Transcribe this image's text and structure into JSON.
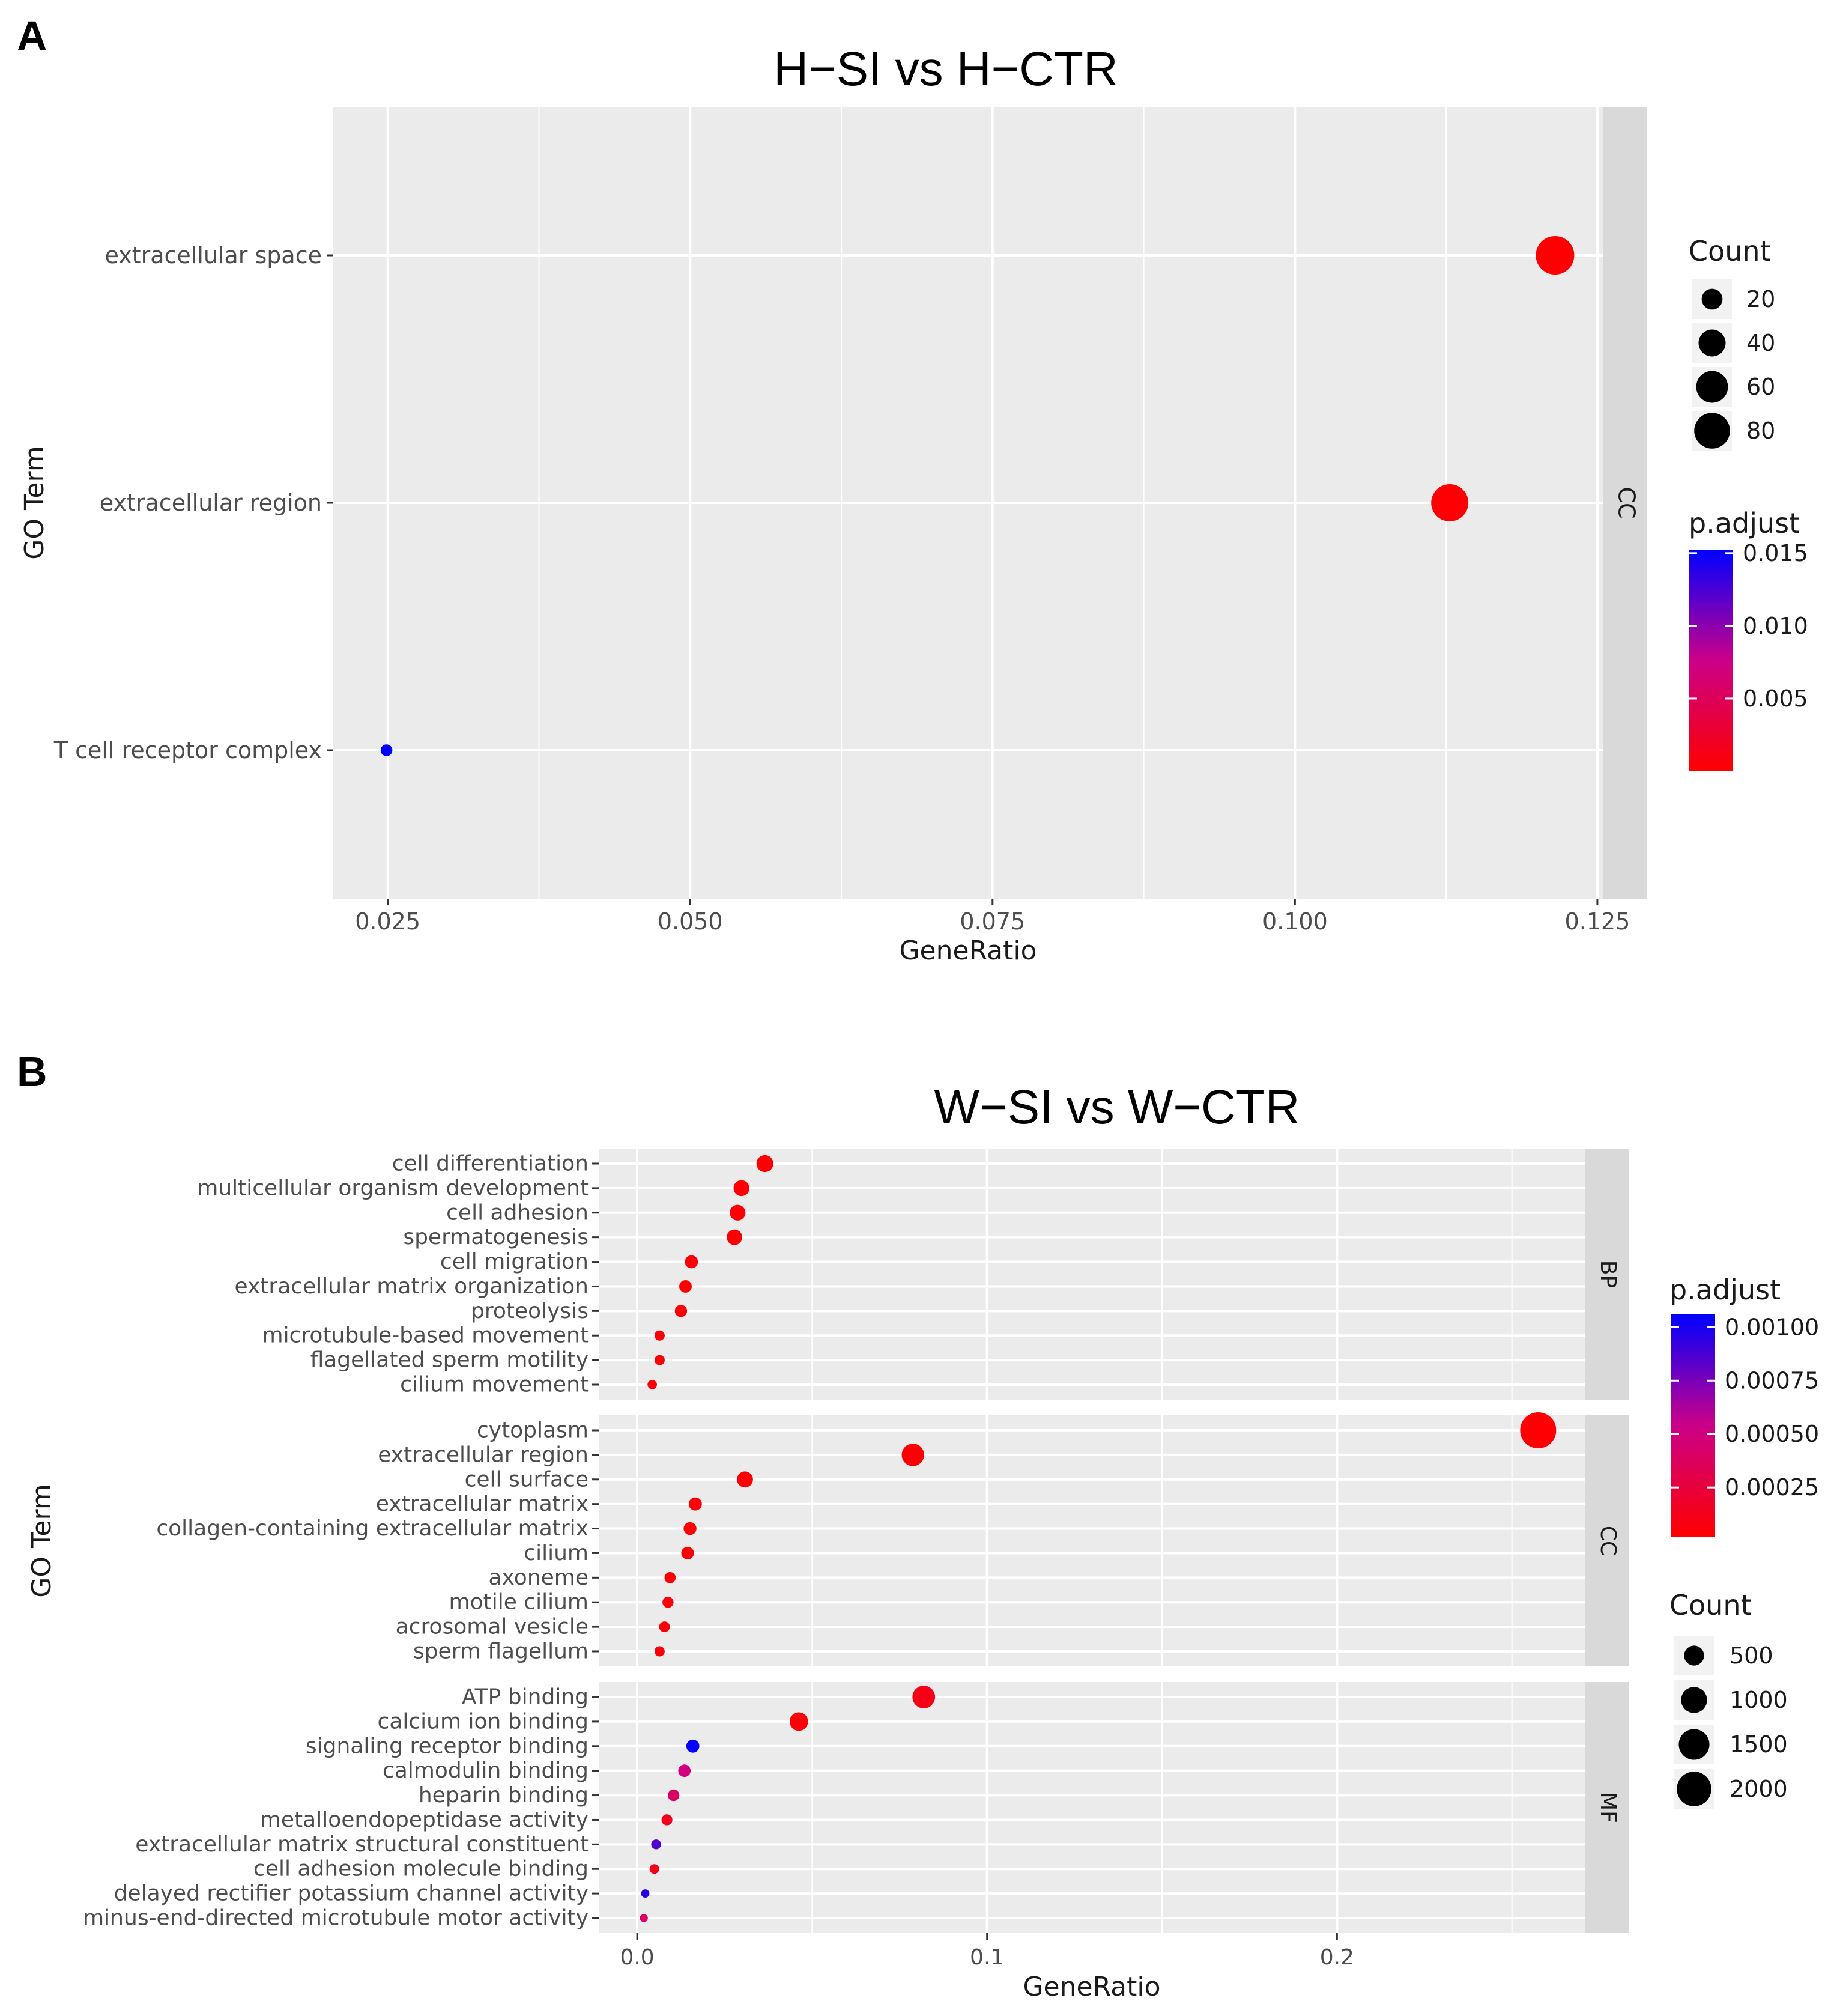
{
  "panels": [
    {
      "label": "A",
      "title": "H−SI vs H−CTR",
      "xlabel": "GeneRatio",
      "ylabel": "GO Term",
      "legend_count_title": "Count",
      "legend_color_title": "p.adjust"
    },
    {
      "label": "B",
      "title": "W−SI vs W−CTR",
      "xlabel": "GeneRatio",
      "ylabel": "GO Term",
      "legend_count_title": "Count",
      "legend_color_title": "p.adjust"
    }
  ],
  "colors": {
    "panel_bg": "#ebebeb",
    "strip_bg": "#d9d9d9",
    "grid": "#ffffff",
    "low": "#ff0000",
    "high": "#0000ff"
  },
  "chart_data": [
    {
      "type": "scatter",
      "title": "H−SI vs H−CTR",
      "xlabel": "GeneRatio",
      "ylabel": "GO Term",
      "xlim": [
        0.0205,
        0.1255
      ],
      "x_ticks": [
        0.025,
        0.05,
        0.075,
        0.1,
        0.125
      ],
      "x_tick_labels": [
        "0.025",
        "0.050",
        "0.075",
        "0.100",
        "0.125"
      ],
      "size_legend": {
        "title": "Count",
        "values": [
          20,
          40,
          60,
          80
        ],
        "labels": [
          "20",
          "40",
          "60",
          "80"
        ]
      },
      "color_legend": {
        "title": "p.adjust",
        "min": 0,
        "max": 0.0152,
        "ticks": [
          0.015,
          0.01,
          0.005
        ],
        "tick_labels": [
          "0.015",
          "0.010",
          "0.005"
        ]
      },
      "facets": [
        {
          "name": "CC",
          "terms": [
            "extracellular space",
            "extracellular region",
            "T cell receptor complex"
          ],
          "gene_ratio": [
            0.1215,
            0.1128,
            0.0249
          ],
          "count": [
            95,
            88,
            3
          ],
          "p_adjust": [
            0.0001,
            0.0002,
            0.0152
          ]
        }
      ]
    },
    {
      "type": "scatter",
      "title": "W−SI vs W−CTR",
      "xlabel": "GeneRatio",
      "ylabel": "GO Term",
      "xlim": [
        -0.011,
        0.271
      ],
      "x_ticks": [
        0.0,
        0.1,
        0.2
      ],
      "x_tick_labels": [
        "0.0",
        "0.1",
        "0.2"
      ],
      "size_legend": {
        "title": "Count",
        "values": [
          500,
          1000,
          1500,
          2000
        ],
        "labels": [
          "500",
          "1000",
          "1500",
          "2000"
        ]
      },
      "color_legend": {
        "title": "p.adjust",
        "min": 2e-05,
        "max": 0.00106,
        "ticks": [
          0.001,
          0.00075,
          0.0005,
          0.00025
        ],
        "tick_labels": [
          "0.00100",
          "0.00075",
          "0.00050",
          "0.00025"
        ]
      },
      "facets": [
        {
          "name": "BP",
          "terms": [
            "cell differentiation",
            "multicellular organism development",
            "cell adhesion",
            "spermatogenesis",
            "cell migration",
            "extracellular matrix organization",
            "proteolysis",
            "microtubule-based movement",
            "flagellated sperm motility",
            "cilium movement"
          ],
          "gene_ratio": [
            0.0365,
            0.0298,
            0.0287,
            0.0278,
            0.0155,
            0.0138,
            0.0125,
            0.0064,
            0.0064,
            0.0043
          ],
          "count": [
            310,
            260,
            250,
            240,
            135,
            120,
            110,
            55,
            55,
            38
          ],
          "p_adjust": [
            3e-05,
            3e-05,
            3e-05,
            3e-05,
            3e-05,
            3e-05,
            4e-05,
            5e-05,
            5e-05,
            5e-05
          ]
        },
        {
          "name": "CC",
          "terms": [
            "cytoplasm",
            "extracellular region",
            "cell surface",
            "extracellular matrix",
            "collagen-containing extracellular matrix",
            "cilium",
            "axoneme",
            "motile cilium",
            "acrosomal vesicle",
            "sperm flagellum"
          ],
          "gene_ratio": [
            0.2575,
            0.0788,
            0.0308,
            0.0166,
            0.0151,
            0.0144,
            0.0094,
            0.0088,
            0.0078,
            0.0064
          ],
          "count": [
            2200,
            680,
            265,
            142,
            130,
            124,
            80,
            75,
            67,
            55
          ],
          "p_adjust": [
            3e-05,
            3e-05,
            3e-05,
            3e-05,
            3e-05,
            3e-05,
            5e-05,
            5e-05,
            5e-05,
            5e-05
          ]
        },
        {
          "name": "MF",
          "terms": [
            "ATP binding",
            "calcium ion binding",
            "signaling receptor binding",
            "calmodulin binding",
            "heparin binding",
            "metalloendopeptidase activity",
            "extracellular matrix structural constituent",
            "cell adhesion molecule binding",
            "delayed rectifier potassium channel activity",
            "minus-end-directed microtubule motor activity"
          ],
          "gene_ratio": [
            0.0819,
            0.0462,
            0.0159,
            0.0135,
            0.0104,
            0.0085,
            0.0054,
            0.0049,
            0.0023,
            0.0019
          ],
          "count": [
            700,
            398,
            137,
            116,
            90,
            73,
            46,
            42,
            20,
            16
          ],
          "p_adjust": [
            0.0001,
            5e-05,
            0.00105,
            0.0005,
            0.0004,
            0.00012,
            0.00085,
            0.0001,
            0.00095,
            0.0004
          ]
        }
      ]
    }
  ]
}
